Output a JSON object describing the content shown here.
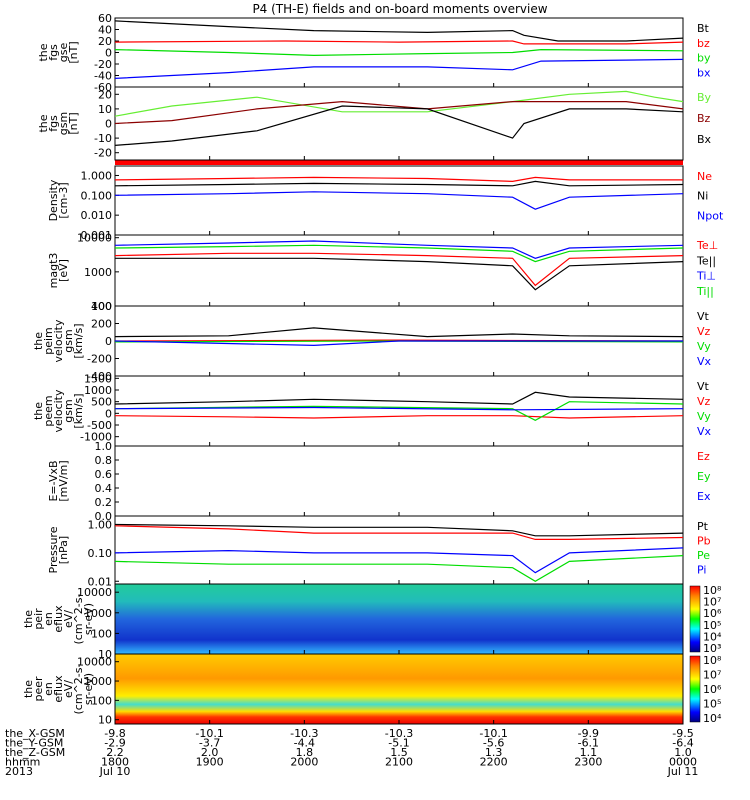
{
  "title": "P4 (TH-E) fields and on-board moments overview",
  "colors": {
    "black": "#000000",
    "red": "#ff0000",
    "green": "#00dd00",
    "blue": "#0000ff",
    "darkred": "#8b0000",
    "lightgreen": "#66ee33"
  },
  "chart_data": {
    "type": "line",
    "x_range": [
      "2013-07-10 18:00",
      "2013-07-11 00:00"
    ],
    "panels": [
      {
        "ylabel": [
          "the",
          "fgs",
          "gse",
          "[nT]"
        ],
        "yticks": [
          "60",
          "40",
          "20",
          "0",
          "-20",
          "-40",
          "-60"
        ],
        "ylim": [
          -60,
          60
        ],
        "series": [
          {
            "name": "Bt",
            "color": "#000000",
            "x": [
              0,
              0.2,
              0.35,
              0.55,
              0.7,
              0.72,
              0.78,
              0.9,
              1.0
            ],
            "y": [
              55,
              45,
              38,
              35,
              38,
              30,
              20,
              20,
              25
            ]
          },
          {
            "name": "bz",
            "color": "#ff0000",
            "x": [
              0,
              0.3,
              0.5,
              0.7,
              0.72,
              0.9,
              1.0
            ],
            "y": [
              18,
              20,
              18,
              20,
              15,
              15,
              18
            ]
          },
          {
            "name": "by",
            "color": "#00dd00",
            "x": [
              0,
              0.2,
              0.35,
              0.55,
              0.7,
              0.75,
              1.0
            ],
            "y": [
              5,
              0,
              -5,
              -2,
              0,
              5,
              3
            ]
          },
          {
            "name": "bx",
            "color": "#0000ff",
            "x": [
              0,
              0.2,
              0.35,
              0.55,
              0.7,
              0.75,
              1.0
            ],
            "y": [
              -45,
              -35,
              -25,
              -25,
              -30,
              -15,
              -12
            ]
          }
        ]
      },
      {
        "ylabel": [
          "the",
          "fgs",
          "gsm",
          "[nT]"
        ],
        "yticks": [
          "20",
          "10",
          "0",
          "-10",
          "-20"
        ],
        "ylim": [
          -25,
          25
        ],
        "series": [
          {
            "name": "By",
            "color": "#66ee33",
            "x": [
              0,
              0.1,
              0.25,
              0.4,
              0.55,
              0.7,
              0.8,
              0.9,
              0.95,
              1.0
            ],
            "y": [
              5,
              12,
              18,
              8,
              8,
              15,
              20,
              22,
              18,
              15
            ]
          },
          {
            "name": "Bz",
            "color": "#8b0000",
            "x": [
              0,
              0.1,
              0.25,
              0.4,
              0.55,
              0.7,
              0.8,
              0.9,
              1.0
            ],
            "y": [
              0,
              2,
              10,
              15,
              10,
              15,
              15,
              15,
              10
            ]
          },
          {
            "name": "Bx",
            "color": "#000000",
            "x": [
              0,
              0.1,
              0.25,
              0.4,
              0.55,
              0.7,
              0.72,
              0.8,
              0.9,
              1.0
            ],
            "y": [
              -15,
              -12,
              -5,
              12,
              10,
              -10,
              0,
              10,
              10,
              8
            ]
          }
        ]
      },
      {
        "ylabel": [
          "Density",
          "[cm-3]"
        ],
        "log": true,
        "yticks": [
          "1.000",
          "0.100",
          "0.010",
          "0.001"
        ],
        "ylim": [
          0.001,
          3
        ],
        "series": [
          {
            "name": "Ne",
            "color": "#ff0000",
            "x": [
              0,
              0.2,
              0.35,
              0.55,
              0.7,
              0.74,
              0.8,
              1.0
            ],
            "y": [
              0.6,
              0.7,
              0.8,
              0.7,
              0.5,
              0.8,
              0.6,
              0.6
            ]
          },
          {
            "name": "Ni",
            "color": "#000000",
            "x": [
              0,
              0.2,
              0.35,
              0.55,
              0.7,
              0.74,
              0.8,
              1.0
            ],
            "y": [
              0.3,
              0.35,
              0.4,
              0.35,
              0.3,
              0.5,
              0.3,
              0.35
            ]
          },
          {
            "name": "Npot",
            "color": "#0000ff",
            "x": [
              0,
              0.2,
              0.35,
              0.55,
              0.7,
              0.74,
              0.8,
              1.0
            ],
            "y": [
              0.1,
              0.12,
              0.15,
              0.12,
              0.08,
              0.02,
              0.08,
              0.12
            ]
          }
        ]
      },
      {
        "ylabel": [
          "magt3",
          "[eV]"
        ],
        "log": true,
        "yticks": [
          "10000",
          "1000",
          "100"
        ],
        "ylim": [
          100,
          12000
        ],
        "series": [
          {
            "name": "Te⊥",
            "color": "#ff0000",
            "x": [
              0,
              0.2,
              0.35,
              0.55,
              0.7,
              0.74,
              0.8,
              1.0
            ],
            "y": [
              3000,
              3500,
              3500,
              3000,
              2500,
              400,
              2500,
              3000
            ]
          },
          {
            "name": "Te||",
            "color": "#000000",
            "x": [
              0,
              0.2,
              0.35,
              0.55,
              0.7,
              0.74,
              0.8,
              1.0
            ],
            "y": [
              2500,
              2500,
              2500,
              2000,
              1500,
              300,
              1500,
              2000
            ]
          },
          {
            "name": "Ti⊥",
            "color": "#0000ff",
            "x": [
              0,
              0.2,
              0.35,
              0.55,
              0.7,
              0.74,
              0.8,
              1.0
            ],
            "y": [
              6000,
              7000,
              8000,
              6000,
              5000,
              2500,
              5000,
              6000
            ]
          },
          {
            "name": "Ti||",
            "color": "#00dd00",
            "x": [
              0,
              0.2,
              0.35,
              0.55,
              0.7,
              0.74,
              0.8,
              1.0
            ],
            "y": [
              5000,
              5500,
              6000,
              5000,
              4000,
              2000,
              4000,
              5000
            ]
          }
        ]
      },
      {
        "ylabel": [
          "the",
          "peim",
          "velocity",
          "gsm",
          "[km/s]"
        ],
        "yticks": [
          "400",
          "200",
          "0",
          "-200",
          "-400"
        ],
        "ylim": [
          -400,
          400
        ],
        "series": [
          {
            "name": "Vt",
            "color": "#000000",
            "x": [
              0,
              0.2,
              0.35,
              0.55,
              0.7,
              0.8,
              1.0
            ],
            "y": [
              50,
              60,
              150,
              50,
              80,
              60,
              50
            ]
          },
          {
            "name": "Vz",
            "color": "#ff0000",
            "x": [
              0,
              0.5,
              1.0
            ],
            "y": [
              0,
              10,
              0
            ]
          },
          {
            "name": "Vy",
            "color": "#00dd00",
            "x": [
              0,
              0.5,
              1.0
            ],
            "y": [
              -10,
              0,
              -10
            ]
          },
          {
            "name": "Vx",
            "color": "#0000ff",
            "x": [
              0,
              0.35,
              0.5,
              1.0
            ],
            "y": [
              0,
              -50,
              0,
              0
            ]
          }
        ]
      },
      {
        "ylabel": [
          "the",
          "peem",
          "velocity",
          "gsm",
          "[km/s]"
        ],
        "yticks": [
          "1500",
          "1000",
          "500",
          "0",
          "-500",
          "-1000"
        ],
        "ylim": [
          -1400,
          1600
        ],
        "series": [
          {
            "name": "Vt",
            "color": "#000000",
            "x": [
              0,
              0.2,
              0.35,
              0.55,
              0.7,
              0.74,
              0.8,
              1.0
            ],
            "y": [
              400,
              500,
              600,
              500,
              400,
              900,
              700,
              600
            ]
          },
          {
            "name": "Vz",
            "color": "#ff0000",
            "x": [
              0,
              0.2,
              0.35,
              0.55,
              0.7,
              0.8,
              1.0
            ],
            "y": [
              -100,
              -150,
              -200,
              -100,
              -100,
              -200,
              -100
            ]
          },
          {
            "name": "Vy",
            "color": "#00dd00",
            "x": [
              0,
              0.35,
              0.7,
              0.74,
              0.8,
              1.0
            ],
            "y": [
              200,
              300,
              200,
              -300,
              500,
              400
            ]
          },
          {
            "name": "Vx",
            "color": "#0000ff",
            "x": [
              0,
              0.35,
              0.7,
              1.0
            ],
            "y": [
              200,
              250,
              150,
              200
            ]
          }
        ]
      },
      {
        "ylabel": [
          "E=-VxB",
          "[mV/m]"
        ],
        "yticks": [
          "1.0",
          "0.8",
          "0.6",
          "0.4",
          "0.2",
          "0.0"
        ],
        "ylim": [
          0,
          1
        ],
        "series": [
          {
            "name": "Ez",
            "color": "#ff0000",
            "x": [],
            "y": []
          },
          {
            "name": "Ey",
            "color": "#00dd00",
            "x": [],
            "y": []
          },
          {
            "name": "Ex",
            "color": "#0000ff",
            "x": [],
            "y": []
          }
        ]
      },
      {
        "ylabel": [
          "Pressure",
          "[nPa]"
        ],
        "log": true,
        "yticks": [
          "1.00",
          "0.10",
          "0.01"
        ],
        "ylim": [
          0.008,
          2
        ],
        "series": [
          {
            "name": "Pt",
            "color": "#000000",
            "x": [
              0,
              0.2,
              0.35,
              0.55,
              0.7,
              0.74,
              0.8,
              1.0
            ],
            "y": [
              1.0,
              0.9,
              0.8,
              0.8,
              0.6,
              0.4,
              0.4,
              0.5
            ]
          },
          {
            "name": "Pb",
            "color": "#ff0000",
            "x": [
              0,
              0.2,
              0.35,
              0.55,
              0.7,
              0.74,
              0.8,
              1.0
            ],
            "y": [
              0.9,
              0.7,
              0.5,
              0.5,
              0.5,
              0.3,
              0.3,
              0.35
            ]
          },
          {
            "name": "Pe",
            "color": "#00dd00",
            "x": [
              0,
              0.2,
              0.35,
              0.55,
              0.7,
              0.74,
              0.8,
              1.0
            ],
            "y": [
              0.05,
              0.04,
              0.04,
              0.04,
              0.03,
              0.01,
              0.05,
              0.08
            ]
          },
          {
            "name": "Pi",
            "color": "#0000ff",
            "x": [
              0,
              0.2,
              0.35,
              0.55,
              0.7,
              0.74,
              0.8,
              1.0
            ],
            "y": [
              0.1,
              0.12,
              0.1,
              0.1,
              0.08,
              0.02,
              0.1,
              0.15
            ]
          }
        ]
      },
      {
        "type": "heatmap",
        "ylabel": [
          "the",
          "peir",
          "en",
          "eflux",
          "eV/",
          "(cm^2-s-",
          "sr-eV)"
        ],
        "log": true,
        "yticks": [
          "10000",
          "1000",
          "100",
          "10"
        ],
        "ylim": [
          10,
          25000
        ],
        "colorbar_ticks": [
          "10⁸",
          "10⁷",
          "10⁶",
          "10⁵",
          "10⁴",
          "10³"
        ]
      },
      {
        "type": "heatmap",
        "ylabel": [
          "the",
          "peer",
          "en",
          "eflux",
          "eV/",
          "(cm^2-s-",
          "sr-eV)"
        ],
        "log": true,
        "yticks": [
          "10000",
          "1000",
          "100",
          "10"
        ],
        "ylim": [
          6,
          25000
        ],
        "colorbar_ticks": [
          "10⁸",
          "10⁷",
          "10⁶",
          "10⁵",
          "10⁴"
        ]
      }
    ]
  },
  "ephemeris": {
    "rows": [
      {
        "label": "the_X-GSM",
        "values": [
          "-9.8",
          "-10.1",
          "-10.3",
          "-10.3",
          "-10.1",
          "-9.9",
          "-9.5"
        ]
      },
      {
        "label": "the_Y-GSM",
        "values": [
          "-2.9",
          "-3.7",
          "-4.4",
          "-5.1",
          "-5.6",
          "-6.1",
          "-6.4"
        ]
      },
      {
        "label": "the_Z-GSM",
        "values": [
          "2.2",
          "2.0",
          "1.8",
          "1.5",
          "1.3",
          "1.1",
          "1.0"
        ]
      },
      {
        "label": "hhmm",
        "values": [
          "1800",
          "1900",
          "2000",
          "2100",
          "2200",
          "2300",
          "0000"
        ]
      },
      {
        "label": "2013",
        "values": [
          "Jul 10",
          "",
          "",
          "",
          "",
          "",
          "Jul 11"
        ]
      }
    ]
  }
}
